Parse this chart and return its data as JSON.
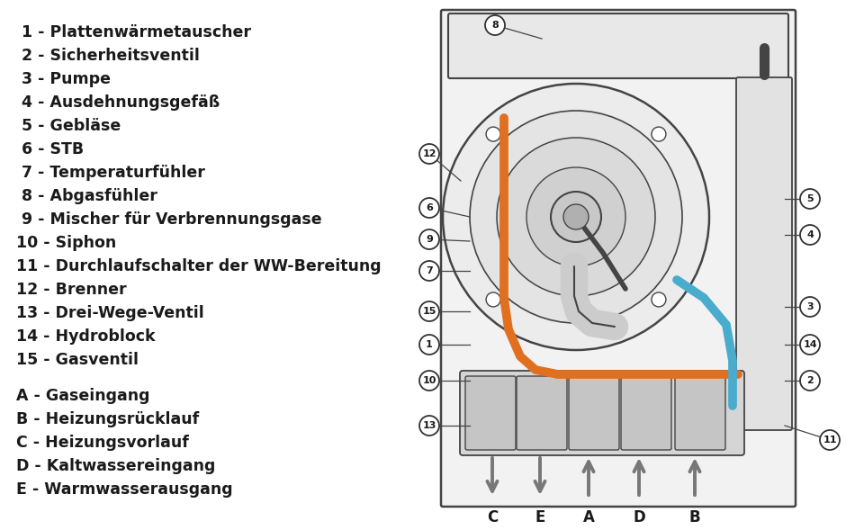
{
  "background_color": "#ffffff",
  "legend_items": [
    " 1 - Plattenwärmetauscher",
    " 2 - Sicherheitsventil",
    " 3 - Pumpe",
    " 4 - Ausdehnungsgefäß",
    " 5 - Gebläse",
    " 6 - STB",
    " 7 - Temperaturfühler",
    " 8 - Abgasfühler",
    " 9 - Mischer für Verbrennungsgase",
    "10 - Siphon",
    "11 - Durchlaufschalter der WW-Bereitung",
    "12 - Brenner",
    "13 - Drei-Wege-Ventil",
    "14 - Hydroblock",
    "15 - Gasventil"
  ],
  "legend_items2": [
    "A - Gaseingang",
    "B - Heizungsrücklauf",
    "C - Heizungsvorlauf",
    "D - Kaltwassereingang",
    "E - Warmwasserausgang"
  ],
  "text_color": "#1a1a1a",
  "font_size": 12.5,
  "label_color": "#1a1a1a",
  "orange_color": "#E07020",
  "blue_color": "#4AACCC",
  "teal_color": "#3ABABA",
  "gray_color": "#888888",
  "line_color": "#444444",
  "arrow_color": "#777777",
  "circle_border": "#333333",
  "body_fill": "#f2f2f2",
  "detail_fill": "#e0e0e0"
}
